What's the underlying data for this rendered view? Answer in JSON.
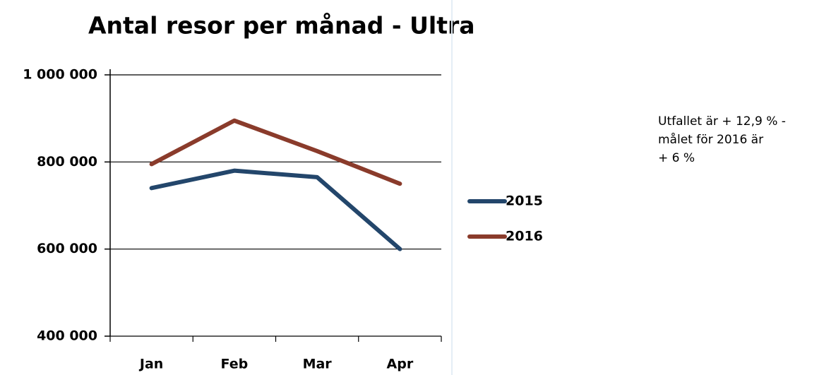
{
  "chart_data": {
    "type": "line",
    "title": "Antal resor per månad - Ultra",
    "categories": [
      "Jan",
      "Feb",
      "Mar",
      "Apr"
    ],
    "series": [
      {
        "name": "2015",
        "color": "#23466b",
        "values": [
          740000,
          780000,
          765000,
          600000
        ]
      },
      {
        "name": "2016",
        "color": "#8a3b2b",
        "values": [
          795000,
          895000,
          825000,
          750000
        ]
      }
    ],
    "ylim": [
      400000,
      1000000
    ],
    "yticks": [
      {
        "value": 400000,
        "label": "400 000"
      },
      {
        "value": 600000,
        "label": "600 000"
      },
      {
        "value": 800000,
        "label": "800 000"
      },
      {
        "value": 1000000,
        "label": "1 000 000"
      }
    ],
    "grid": true,
    "legend": "right",
    "annotation": [
      "Utfallet är + 12,9 % -",
      "målet för 2016 är",
      "+ 6 %"
    ]
  }
}
